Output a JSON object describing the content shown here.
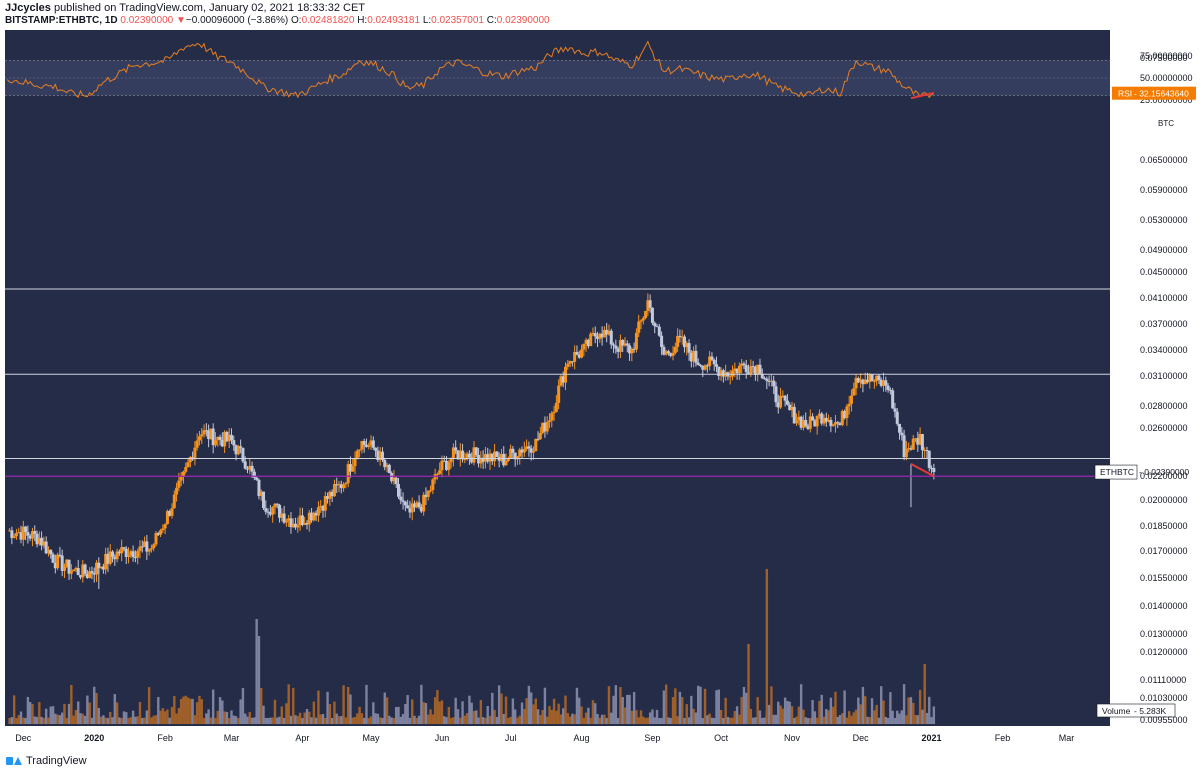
{
  "header": {
    "author": "JJcycles",
    "published": " published on TradingView.com, January 02, 2021 18:33:32 CET",
    "symbol": "BITSTAMP:ETHBTC, 1D",
    "last_price": "0.02390000",
    "change_arrow": "▼",
    "change": "−0.00096000 (−3.86%)",
    "o_label": "O:",
    "open": "0.02481820",
    "h_label": "H:",
    "high": "0.02493181",
    "l_label": "L:",
    "low": "0.02357001",
    "c_label": "C:",
    "close": "0.02390000"
  },
  "footer": {
    "brand": "TradingView"
  },
  "colors": {
    "background": "#252c48",
    "candle_up": "#f7931a",
    "candle_down": "#c3c9dc",
    "rsi_line": "#e67e22",
    "rsi_band": "#3b4366",
    "hline": "#d1d4dc",
    "purple_line": "#9c27b0",
    "red_line": "#e53935",
    "price_label_bg": "#ffffff",
    "rsi_label_bg": "#f57c00"
  },
  "chart_data": [
    {
      "type": "candlestick",
      "symbol": "ETHBTC",
      "price_axis_unit": "BTC",
      "price_ticks": [
        "0.07500000",
        "0.06500000",
        "0.05900000",
        "0.05300000",
        "0.04900000",
        "0.04500000",
        "0.04100000",
        "0.03700000",
        "0.03400000",
        "0.03100000",
        "0.02800000",
        "0.02600000",
        "0.02390000",
        "0.02200000",
        "0.02000000",
        "0.01850000",
        "0.01700000",
        "0.01550000",
        "0.01400000",
        "0.01300000",
        "0.01200000",
        "0.01110000",
        "0.01030000",
        "0.00955000"
      ],
      "log_scale": true,
      "x_ticks": [
        "Dec",
        "2020",
        "Feb",
        "Mar",
        "Apr",
        "May",
        "Jun",
        "Jul",
        "Aug",
        "Sep",
        "Oct",
        "Nov",
        "Dec",
        "2021",
        "Feb",
        "Mar"
      ],
      "x_tick_dates": [
        "2019-12-01",
        "2020-01-01",
        "2020-02-01",
        "2020-03-01",
        "2020-04-01",
        "2020-05-01",
        "2020-06-01",
        "2020-07-01",
        "2020-08-01",
        "2020-09-01",
        "2020-10-01",
        "2020-11-01",
        "2020-12-01",
        "2021-01-01",
        "2021-02-01",
        "2021-03-01"
      ],
      "closes_weekly": [
        {
          "date": "2019-11-24",
          "close": 0.02
        },
        {
          "date": "2019-12-01",
          "close": 0.0199
        },
        {
          "date": "2019-12-08",
          "close": 0.0196
        },
        {
          "date": "2019-12-15",
          "close": 0.0183
        },
        {
          "date": "2019-12-22",
          "close": 0.0178
        },
        {
          "date": "2019-12-29",
          "close": 0.0176
        },
        {
          "date": "2020-01-05",
          "close": 0.0182
        },
        {
          "date": "2020-01-12",
          "close": 0.0188
        },
        {
          "date": "2020-01-19",
          "close": 0.0189
        },
        {
          "date": "2020-01-26",
          "close": 0.019
        },
        {
          "date": "2020-02-02",
          "close": 0.021
        },
        {
          "date": "2020-02-09",
          "close": 0.0235
        },
        {
          "date": "2020-02-16",
          "close": 0.027
        },
        {
          "date": "2020-02-23",
          "close": 0.0265
        },
        {
          "date": "2020-03-01",
          "close": 0.0262
        },
        {
          "date": "2020-03-08",
          "close": 0.0245
        },
        {
          "date": "2020-03-15",
          "close": 0.0218
        },
        {
          "date": "2020-03-22",
          "close": 0.0212
        },
        {
          "date": "2020-03-29",
          "close": 0.0205
        },
        {
          "date": "2020-04-05",
          "close": 0.0211
        },
        {
          "date": "2020-04-12",
          "close": 0.0221
        },
        {
          "date": "2020-04-19",
          "close": 0.0232
        },
        {
          "date": "2020-04-26",
          "close": 0.0262
        },
        {
          "date": "2020-05-03",
          "close": 0.0256
        },
        {
          "date": "2020-05-10",
          "close": 0.0233
        },
        {
          "date": "2020-05-17",
          "close": 0.021
        },
        {
          "date": "2020-05-24",
          "close": 0.0218
        },
        {
          "date": "2020-05-31",
          "close": 0.0241
        },
        {
          "date": "2020-06-07",
          "close": 0.0253
        },
        {
          "date": "2020-06-14",
          "close": 0.0252
        },
        {
          "date": "2020-06-21",
          "close": 0.025
        },
        {
          "date": "2020-06-28",
          "close": 0.0248
        },
        {
          "date": "2020-07-05",
          "close": 0.0256
        },
        {
          "date": "2020-07-12",
          "close": 0.0261
        },
        {
          "date": "2020-07-19",
          "close": 0.0287
        },
        {
          "date": "2020-07-26",
          "close": 0.0335
        },
        {
          "date": "2020-08-02",
          "close": 0.0345
        },
        {
          "date": "2020-08-09",
          "close": 0.0368
        },
        {
          "date": "2020-08-16",
          "close": 0.035
        },
        {
          "date": "2020-08-23",
          "close": 0.0345
        },
        {
          "date": "2020-08-30",
          "close": 0.04
        },
        {
          "date": "2020-09-06",
          "close": 0.034
        },
        {
          "date": "2020-09-13",
          "close": 0.0355
        },
        {
          "date": "2020-09-20",
          "close": 0.0335
        },
        {
          "date": "2020-09-27",
          "close": 0.033
        },
        {
          "date": "2020-10-04",
          "close": 0.0322
        },
        {
          "date": "2020-10-11",
          "close": 0.033
        },
        {
          "date": "2020-10-18",
          "close": 0.0328
        },
        {
          "date": "2020-10-25",
          "close": 0.03
        },
        {
          "date": "2020-11-01",
          "close": 0.0285
        },
        {
          "date": "2020-11-08",
          "close": 0.0275
        },
        {
          "date": "2020-11-15",
          "close": 0.0285
        },
        {
          "date": "2020-11-22",
          "close": 0.0275
        },
        {
          "date": "2020-11-29",
          "close": 0.032
        },
        {
          "date": "2020-12-06",
          "close": 0.0315
        },
        {
          "date": "2020-12-13",
          "close": 0.031
        },
        {
          "date": "2020-12-20",
          "close": 0.0255
        },
        {
          "date": "2020-12-27",
          "close": 0.0265
        },
        {
          "date": "2021-01-02",
          "close": 0.0239
        }
      ],
      "horizontal_lines": [
        0.0415,
        0.0321,
        0.0249
      ],
      "purple_line": 0.0236,
      "all_time_low_wick": 0.0168,
      "price_label": "ETHBTC",
      "price_label_value": "0.02390000",
      "price_value": 0.0239
    },
    {
      "type": "line",
      "name": "RSI",
      "label": "RSI",
      "label_value": "32.15643640",
      "ticks": [
        "75.00000000",
        "50.00000000",
        "25.00000000"
      ],
      "ylim": [
        0,
        100
      ],
      "band": [
        30,
        70
      ],
      "last_value": 32.16,
      "values_weekly": [
        50,
        45,
        42,
        40,
        32,
        30,
        45,
        55,
        65,
        67,
        70,
        85,
        90,
        75,
        68,
        55,
        40,
        35,
        30,
        38,
        48,
        55,
        70,
        65,
        55,
        38,
        42,
        60,
        68,
        62,
        55,
        52,
        58,
        62,
        78,
        85,
        78,
        80,
        70,
        65,
        88,
        58,
        60,
        55,
        50,
        48,
        55,
        52,
        40,
        35,
        30,
        38,
        33,
        70,
        62,
        58,
        40,
        28,
        32
      ]
    },
    {
      "type": "bar",
      "name": "Volume",
      "label": "Volume",
      "label_value": "5.283K",
      "last_value": 5.283
    }
  ]
}
